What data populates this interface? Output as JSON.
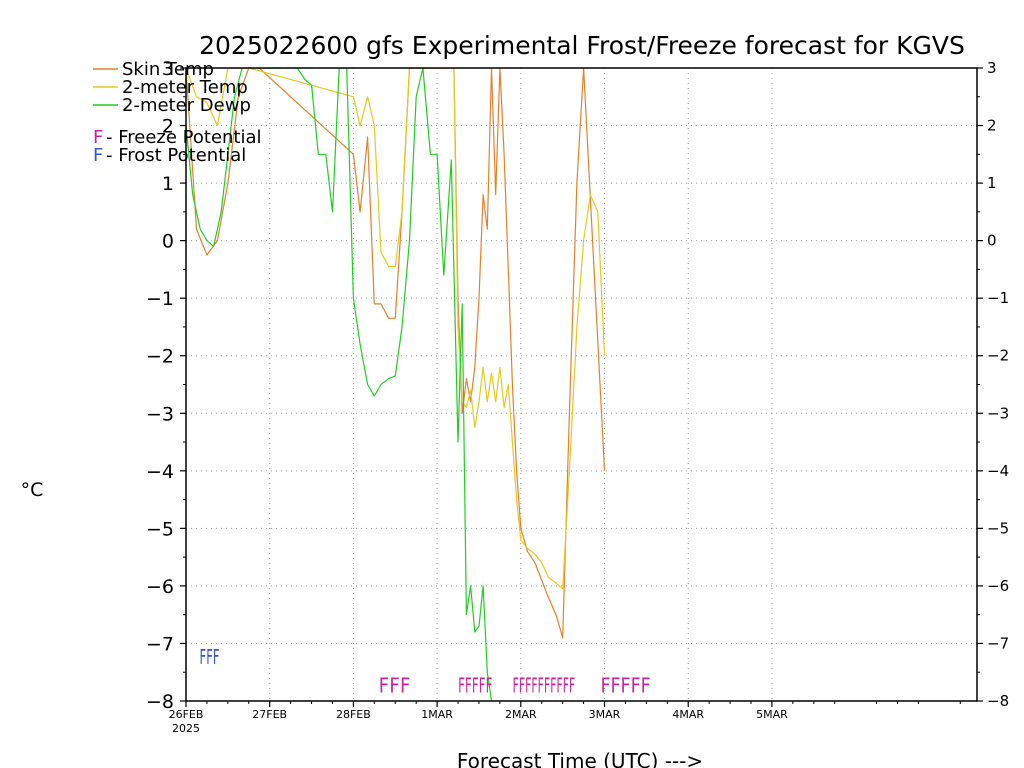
{
  "chart_data": {
    "type": "line",
    "title": "2025022600 gfs Experimental Frost/Freeze forecast for KGVS",
    "ylabel": "°C",
    "xlabel": "Forecast Time (UTC) --->",
    "ylim": [
      -8,
      3
    ],
    "xlim_days": [
      0,
      9.45
    ],
    "grid": true,
    "y_ticks": [
      -8,
      -7,
      -6,
      -5,
      -4,
      -3,
      -2,
      -1,
      0,
      1,
      2,
      3
    ],
    "y_tick_labels": [
      "−8",
      "−7",
      "−6",
      "−5",
      "−4",
      "−3",
      "−2",
      "−1",
      "0",
      "1",
      "2",
      "3"
    ],
    "x_ticks": [
      {
        "day": 0,
        "label": "26FEB",
        "sublabel": "2025"
      },
      {
        "day": 1,
        "label": "27FEB"
      },
      {
        "day": 2,
        "label": "28FEB"
      },
      {
        "day": 3,
        "label": "1MAR"
      },
      {
        "day": 4,
        "label": "2MAR"
      },
      {
        "day": 5,
        "label": "3MAR"
      },
      {
        "day": 6,
        "label": "4MAR"
      },
      {
        "day": 7,
        "label": "5MAR"
      }
    ],
    "legend": {
      "placement": "top-left",
      "entries": [
        {
          "label": "Skin Temp",
          "color": "#e0822e"
        },
        {
          "label": "2-meter Temp",
          "color": "#e6c81e"
        },
        {
          "label": "2-meter Dewp",
          "color": "#22cc22"
        }
      ],
      "markers": [
        {
          "symbol": "F",
          "label": " - Freeze Potential",
          "color": "#cc2299"
        },
        {
          "symbol": "F",
          "label": " - Frost Potential",
          "color": "#3355cc"
        }
      ]
    },
    "series": [
      {
        "name": "Skin Temp",
        "color": "#e0822e",
        "x": [
          0,
          0.125,
          0.25,
          0.375,
          0.5,
          0.625,
          0.75,
          0.875,
          2.0,
          2.08,
          2.17,
          2.25,
          2.33,
          2.42,
          2.5,
          2.58,
          2.67,
          2.75,
          3.2,
          3.25,
          3.3,
          3.35,
          3.4,
          3.45,
          3.5,
          3.55,
          3.6,
          3.65,
          3.7,
          3.75,
          3.8,
          3.85,
          3.9,
          3.95,
          4.0,
          4.08,
          4.17,
          4.25,
          4.33,
          4.42,
          4.5,
          4.58,
          4.67,
          4.75,
          5.0
        ],
        "y": [
          3,
          0.2,
          -0.25,
          0.0,
          1.0,
          2.5,
          3,
          3,
          1.5,
          0.5,
          1.8,
          -1.1,
          -1.1,
          -1.35,
          -1.35,
          0.5,
          3,
          3,
          3,
          -1.0,
          -3.0,
          -2.4,
          -2.8,
          -2.2,
          -1.0,
          0.8,
          0.2,
          3,
          0.8,
          3,
          1.5,
          -0.5,
          -2.5,
          -4.0,
          -5.0,
          -5.4,
          -5.6,
          -5.9,
          -6.2,
          -6.5,
          -6.9,
          -3.0,
          1.0,
          3,
          -4.0
        ]
      },
      {
        "name": "2-meter Temp",
        "color": "#e6c81e",
        "x": [
          0,
          0.125,
          0.25,
          0.375,
          0.5,
          0.625,
          0.75,
          2.0,
          2.08,
          2.17,
          2.25,
          2.33,
          2.42,
          2.5,
          2.58,
          2.67,
          2.75,
          3.2,
          3.25,
          3.3,
          3.35,
          3.4,
          3.45,
          3.5,
          3.55,
          3.6,
          3.65,
          3.7,
          3.75,
          3.8,
          3.85,
          3.9,
          3.95,
          4.0,
          4.08,
          4.17,
          4.25,
          4.33,
          4.42,
          4.5,
          4.58,
          4.67,
          4.75,
          4.83,
          4.92,
          5.0
        ],
        "y": [
          3,
          2.5,
          2.4,
          2.0,
          3,
          3,
          3,
          2.5,
          2.0,
          2.5,
          2.0,
          -0.2,
          -0.45,
          -0.45,
          0.5,
          3,
          3,
          3,
          -1.5,
          -2.8,
          -2.9,
          -2.6,
          -3.25,
          -2.8,
          -2.2,
          -2.8,
          -2.3,
          -2.8,
          -2.2,
          -2.9,
          -2.5,
          -3.5,
          -4.5,
          -5.2,
          -5.35,
          -5.45,
          -5.6,
          -5.85,
          -5.95,
          -6.05,
          -4.0,
          -1.5,
          0.0,
          0.8,
          0.5,
          -2.0
        ]
      },
      {
        "name": "2-meter Dewp",
        "color": "#22cc22",
        "x": [
          0,
          0.08,
          0.17,
          0.25,
          0.33,
          0.42,
          0.5,
          0.58,
          0.67,
          0.75,
          1.33,
          1.42,
          1.5,
          1.58,
          1.67,
          1.75,
          1.83,
          1.92,
          2.0,
          2.08,
          2.17,
          2.25,
          2.33,
          2.42,
          2.5,
          2.58,
          2.67,
          2.75,
          2.83,
          2.92,
          3.0,
          3.08,
          3.17,
          3.25,
          3.3,
          3.35,
          3.4,
          3.45,
          3.5,
          3.55,
          3.6,
          3.65
        ],
        "y": [
          2.0,
          0.8,
          0.2,
          0.0,
          -0.1,
          0.5,
          1.5,
          2.5,
          3,
          3,
          3,
          2.8,
          2.7,
          1.5,
          1.5,
          0.5,
          3,
          3,
          -1.0,
          -1.8,
          -2.5,
          -2.7,
          -2.5,
          -2.4,
          -2.35,
          -1.5,
          0.0,
          2.5,
          3,
          1.5,
          1.5,
          -0.6,
          1.4,
          -3.5,
          -1.1,
          -6.5,
          -6.0,
          -6.8,
          -6.7,
          -6.0,
          -7.5,
          -8.0
        ]
      }
    ],
    "frost_marks": {
      "color": "#3355cc",
      "y": -7.2,
      "start_day": 0.16,
      "end_day": 0.4,
      "text": "FFF"
    },
    "freeze_marks": [
      {
        "color": "#cc2299",
        "y": -7.7,
        "start_day": 2.3,
        "end_day": 2.68,
        "text": "FFF"
      },
      {
        "color": "#cc2299",
        "y": -7.7,
        "start_day": 3.25,
        "end_day": 3.66,
        "text": "FFFFF"
      },
      {
        "color": "#cc2299",
        "y": -7.7,
        "start_day": 3.9,
        "end_day": 4.65,
        "text": "FFFFFFFFFF"
      },
      {
        "color": "#cc2299",
        "y": -7.7,
        "start_day": 4.95,
        "end_day": 5.55,
        "text": "FFFFF"
      }
    ]
  }
}
